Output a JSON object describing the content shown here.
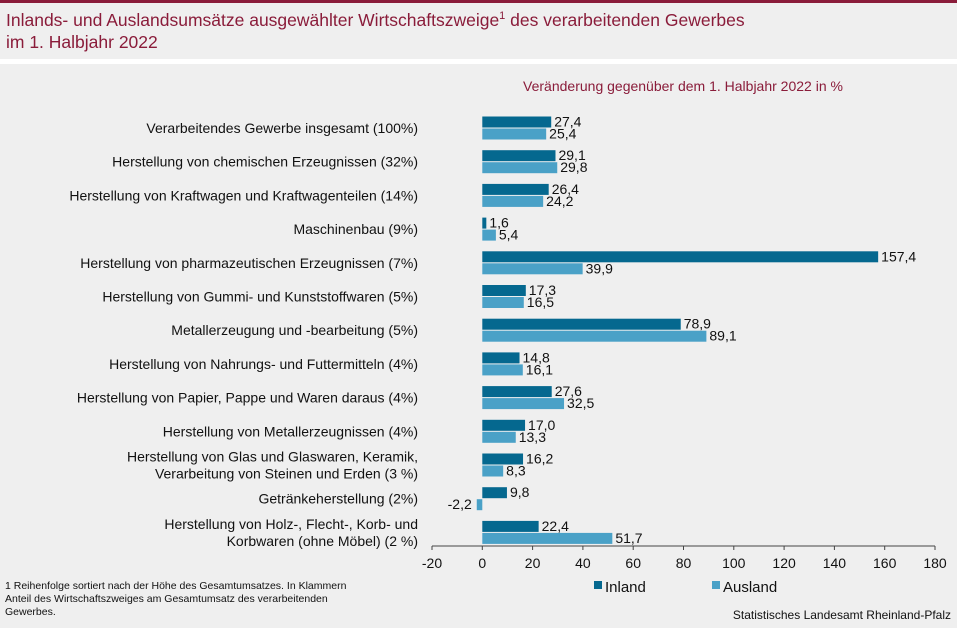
{
  "title": {
    "main": "Inlands- und Auslandsumsätze ausgewählter Wirtschaftszweige",
    "footnote_mark": "1",
    "suffix": " des verarbeitenden Gewerbes",
    "line2": "im 1. Halbjahr 2022"
  },
  "chart_data": {
    "type": "bar",
    "orientation": "horizontal",
    "subtitle": "Veränderung gegenüber dem 1. Halbjahr 2022  in %",
    "categories": [
      [
        "Verarbeitendes Gewerbe insgesamt (100%)"
      ],
      [
        "Herstellung von chemischen Erzeugnissen (32%)"
      ],
      [
        "Herstellung von Kraftwagen und Kraftwagenteilen (14%)"
      ],
      [
        "Maschinenbau (9%)"
      ],
      [
        "Herstellung von pharmazeutischen Erzeugnissen (7%)"
      ],
      [
        "Herstellung von Gummi- und Kunststoffwaren (5%)"
      ],
      [
        "Metallerzeugung und -bearbeitung (5%)"
      ],
      [
        "Herstellung von Nahrungs- und Futtermitteln (4%)"
      ],
      [
        "Herstellung von Papier, Pappe und Waren daraus (4%)"
      ],
      [
        "Herstellung von Metallerzeugnissen (4%)"
      ],
      [
        "Herstellung von Glas und Glaswaren, Keramik,",
        "Verarbeitung von Steinen und Erden (3 %)"
      ],
      [
        "Getränkeherstellung (2%)"
      ],
      [
        "Herstellung von Holz-, Flecht-, Korb- und",
        "Korbwaren (ohne Möbel) (2 %)"
      ]
    ],
    "series": [
      {
        "name": "Inland",
        "color": "#05688f",
        "values": [
          27.4,
          29.1,
          26.4,
          1.6,
          157.4,
          17.3,
          78.9,
          14.8,
          27.6,
          17.0,
          16.2,
          9.8,
          22.4
        ],
        "labels": [
          "27,4",
          "29,1",
          "26,4",
          "1,6",
          "157,4",
          "17,3",
          "78,9",
          "14,8",
          "27,6",
          "17,0",
          "16,2",
          "9,8",
          "22,4"
        ]
      },
      {
        "name": "Ausland",
        "color": "#4aa1c7",
        "values": [
          25.4,
          29.8,
          24.2,
          5.4,
          39.9,
          16.5,
          89.1,
          16.1,
          32.5,
          13.3,
          8.3,
          -2.2,
          51.7
        ],
        "labels": [
          "25,4",
          "29,8",
          "24,2",
          "5,4",
          "39,9",
          "16,5",
          "89,1",
          "16,1",
          "32,5",
          "13,3",
          "8,3",
          "-2,2",
          "51,7"
        ]
      }
    ],
    "xlim": [
      -20,
      180
    ],
    "xticks": [
      -20,
      0,
      20,
      40,
      60,
      80,
      100,
      120,
      140,
      160,
      180
    ],
    "xtick_labels": [
      "-20",
      "0",
      "20",
      "40",
      "60",
      "80",
      "100",
      "120",
      "140",
      "160",
      "180"
    ],
    "legend": "bottom"
  },
  "footnote": "1 Reihenfolge sortiert nach der Höhe des Gesamtumsatzes. In Klammern Anteil des Wirtschaftszweiges am Gesamtumsatz des verarbeitenden Gewerbes.",
  "source": "Statistisches Landesamt  Rheinland-Pfalz"
}
